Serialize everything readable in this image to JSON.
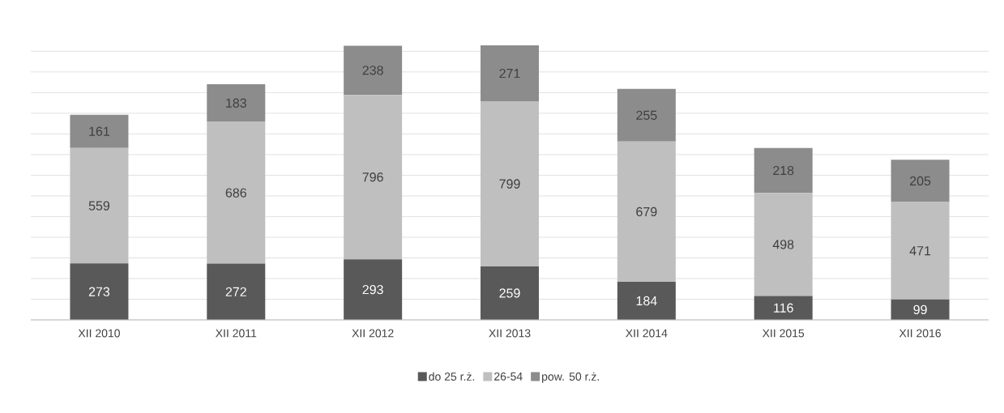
{
  "chart_data": {
    "type": "bar",
    "stacked": true,
    "data_labels": true,
    "grid": "y",
    "legend": "bottom",
    "tick_labels": "x",
    "categories": [
      "XII 2010",
      "XII 2011",
      "XII 2012",
      "XII 2013",
      "XII 2014",
      "XII 2015",
      "XII 2016"
    ],
    "series": [
      {
        "name": "do 25 r.ż.",
        "color": "#595959",
        "values": [
          273,
          272,
          293,
          259,
          184,
          116,
          99
        ]
      },
      {
        "name": "26-54",
        "color": "#bfbfbf",
        "values": [
          559,
          686,
          796,
          799,
          679,
          498,
          471
        ]
      },
      {
        "name": "pow. 50 r.ż.",
        "color": "#8c8c8c",
        "values": [
          161,
          183,
          238,
          271,
          255,
          218,
          205
        ]
      }
    ]
  }
}
